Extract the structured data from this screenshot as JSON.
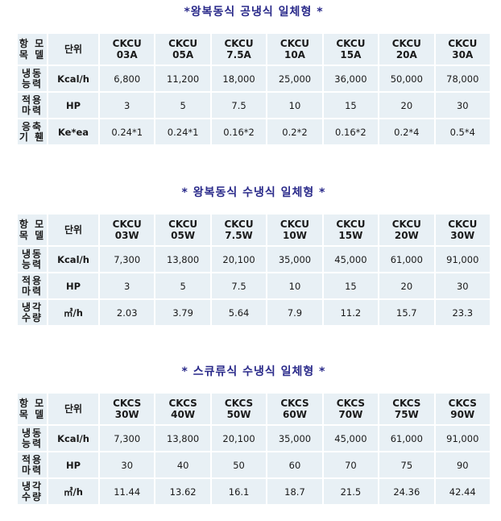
{
  "sections": [
    {
      "title": "*왕복동식 공냉식 일체형 *",
      "header": {
        "label_lines": [
          "항 모",
          "목 델"
        ],
        "unit_label": "단위",
        "models": [
          [
            "CKCU",
            "03A"
          ],
          [
            "CKCU",
            "05A"
          ],
          [
            "CKCU",
            "7.5A"
          ],
          [
            "CKCU",
            "10A"
          ],
          [
            "CKCU",
            "15A"
          ],
          [
            "CKCU",
            "20A"
          ],
          [
            "CKCU",
            "30A"
          ]
        ]
      },
      "rows": [
        {
          "label_lines": [
            "냉동",
            "능력"
          ],
          "unit": "Kcal/h",
          "values": [
            "6,800",
            "11,200",
            "18,000",
            "25,000",
            "36,000",
            "50,000",
            "78,000"
          ]
        },
        {
          "label_lines": [
            "적용",
            "마력"
          ],
          "unit": "HP",
          "values": [
            "3",
            "5",
            "7.5",
            "10",
            "15",
            "20",
            "30"
          ]
        },
        {
          "label_lines": [
            "응축",
            "기 휀"
          ],
          "unit": "Ke*ea",
          "values": [
            "0.24*1",
            "0.24*1",
            "0.16*2",
            "0.2*2",
            "0.16*2",
            "0.2*4",
            "0.5*4"
          ]
        }
      ]
    },
    {
      "title": "* 왕복동식 수냉식 일체형 *",
      "header": {
        "label_lines": [
          "항 모",
          "목 델"
        ],
        "unit_label": "단위",
        "models": [
          [
            "CKCU",
            "03W"
          ],
          [
            "CKCU",
            "05W"
          ],
          [
            "CKCU",
            "7.5W"
          ],
          [
            "CKCU",
            "10W"
          ],
          [
            "CKCU",
            "15W"
          ],
          [
            "CKCU",
            "20W"
          ],
          [
            "CKCU",
            "30W"
          ]
        ]
      },
      "rows": [
        {
          "label_lines": [
            "냉동",
            "능력"
          ],
          "unit": "Kcal/h",
          "values": [
            "7,300",
            "13,800",
            "20,100",
            "35,000",
            "45,000",
            "61,000",
            "91,000"
          ]
        },
        {
          "label_lines": [
            "적용",
            "마력"
          ],
          "unit": "HP",
          "values": [
            "3",
            "5",
            "7.5",
            "10",
            "15",
            "20",
            "30"
          ]
        },
        {
          "label_lines": [
            "냉각",
            "수량"
          ],
          "unit": "㎥/h",
          "values": [
            "2.03",
            "3.79",
            "5.64",
            "7.9",
            "11.2",
            "15.7",
            "23.3"
          ]
        }
      ]
    },
    {
      "title": "*  스큐류식 수냉식 일체형 *",
      "header": {
        "label_lines": [
          "항 모",
          "목 델"
        ],
        "unit_label": "단위",
        "models": [
          [
            "CKCS",
            "30W"
          ],
          [
            "CKCS",
            "40W"
          ],
          [
            "CKCS",
            "50W"
          ],
          [
            "CKCS",
            "60W"
          ],
          [
            "CKCS",
            "70W"
          ],
          [
            "CKCS",
            "75W"
          ],
          [
            "CKCS",
            "90W"
          ]
        ]
      },
      "rows": [
        {
          "label_lines": [
            "냉동",
            "능력"
          ],
          "unit": "Kcal/h",
          "values": [
            "7,300",
            "13,800",
            "20,100",
            "35,000",
            "45,000",
            "61,000",
            "91,000"
          ]
        },
        {
          "label_lines": [
            "적용",
            "마력"
          ],
          "unit": "HP",
          "values": [
            "30",
            "40",
            "50",
            "60",
            "70",
            "75",
            "90"
          ]
        },
        {
          "label_lines": [
            "냉각",
            "수량"
          ],
          "unit": "㎥/h",
          "values": [
            "11.44",
            "13.62",
            "16.1",
            "18.7",
            "21.5",
            "24.36",
            "42.44"
          ]
        }
      ]
    }
  ]
}
